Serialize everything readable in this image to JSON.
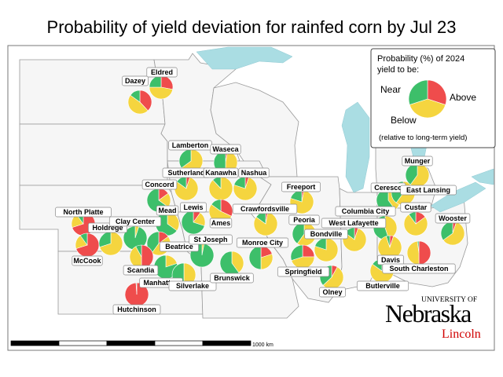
{
  "title": "Probability of yield deviation for rainfed corn by Jul 23",
  "colors": {
    "near": "#f5d53f",
    "above": "#3dbf6a",
    "below": "#ef4c4c",
    "water": "#aadde3",
    "state_fill": "#f6f6f6"
  },
  "legend": {
    "title_line1": "Probability (%) of 2024",
    "title_line2": "yield to be:",
    "near": "Near",
    "above": "Above",
    "below": "Below",
    "note": "(relative to long-term yield)"
  },
  "scale_label": "1000 km",
  "logo": {
    "line1": "UNIVERSITY OF",
    "line2": "Nebraska",
    "line3": "Lincoln"
  },
  "sites": [
    {
      "name": "Dazey",
      "below": 38,
      "near": 47,
      "above": 15
    },
    {
      "name": "Eldred",
      "below": 28,
      "near": 47,
      "above": 25
    },
    {
      "name": "Lamberton",
      "below": 0,
      "near": 65,
      "above": 35
    },
    {
      "name": "Waseca",
      "below": 3,
      "near": 47,
      "above": 50
    },
    {
      "name": "Sutherland",
      "below": 5,
      "near": 80,
      "above": 15
    },
    {
      "name": "Kanawha",
      "below": 0,
      "near": 88,
      "above": 12
    },
    {
      "name": "Nashua",
      "below": 5,
      "near": 75,
      "above": 20
    },
    {
      "name": "Concord",
      "below": 15,
      "near": 20,
      "above": 65
    },
    {
      "name": "Mead",
      "below": 0,
      "near": 35,
      "above": 65
    },
    {
      "name": "Lewis",
      "below": 10,
      "near": 20,
      "above": 70
    },
    {
      "name": "Ames",
      "below": 32,
      "near": 53,
      "above": 15
    },
    {
      "name": "North Platte",
      "below": 70,
      "near": 20,
      "above": 10
    },
    {
      "name": "McCook",
      "below": 70,
      "near": 20,
      "above": 10
    },
    {
      "name": "Holdrege",
      "below": 0,
      "near": 70,
      "above": 30
    },
    {
      "name": "Clay Center",
      "below": 0,
      "near": 5,
      "above": 95
    },
    {
      "name": "Beatrice",
      "below": 15,
      "near": 45,
      "above": 40
    },
    {
      "name": "Scandia",
      "below": 50,
      "near": 42,
      "above": 8
    },
    {
      "name": "Manhattan",
      "below": 0,
      "near": 20,
      "above": 80
    },
    {
      "name": "Silverlake",
      "below": 0,
      "near": 50,
      "above": 50
    },
    {
      "name": "Hutchinson",
      "below": 99,
      "near": 0,
      "above": 1
    },
    {
      "name": "St Joseph",
      "below": 0,
      "near": 3,
      "above": 97
    },
    {
      "name": "Brunswick",
      "below": 0,
      "near": 40,
      "above": 60
    },
    {
      "name": "Monroe City",
      "below": 20,
      "near": 30,
      "above": 50
    },
    {
      "name": "Crawfordsville",
      "below": 3,
      "near": 82,
      "above": 15
    },
    {
      "name": "Freeport",
      "below": 3,
      "near": 77,
      "above": 20
    },
    {
      "name": "Peoria",
      "below": 0,
      "near": 60,
      "above": 40
    },
    {
      "name": "Springfield",
      "below": 25,
      "near": 45,
      "above": 30
    },
    {
      "name": "Bondville",
      "below": 0,
      "near": 80,
      "above": 20
    },
    {
      "name": "Olney",
      "below": 8,
      "near": 55,
      "above": 37
    },
    {
      "name": "West Lafayette",
      "below": 5,
      "near": 80,
      "above": 15
    },
    {
      "name": "Columbia City",
      "below": 0,
      "near": 45,
      "above": 55
    },
    {
      "name": "Ceresco",
      "below": 0,
      "near": 40,
      "above": 60
    },
    {
      "name": "East Lansing",
      "below": 0,
      "near": 60,
      "above": 40
    },
    {
      "name": "Munger",
      "below": 0,
      "near": 60,
      "above": 40
    },
    {
      "name": "Custar",
      "below": 15,
      "near": 75,
      "above": 10
    },
    {
      "name": "Wooster",
      "below": 5,
      "near": 60,
      "above": 35
    },
    {
      "name": "Davis",
      "below": 5,
      "near": 90,
      "above": 5
    },
    {
      "name": "South Charleston",
      "below": 50,
      "near": 48,
      "above": 2
    },
    {
      "name": "Butlerville",
      "below": 15,
      "near": 70,
      "above": 15
    }
  ]
}
